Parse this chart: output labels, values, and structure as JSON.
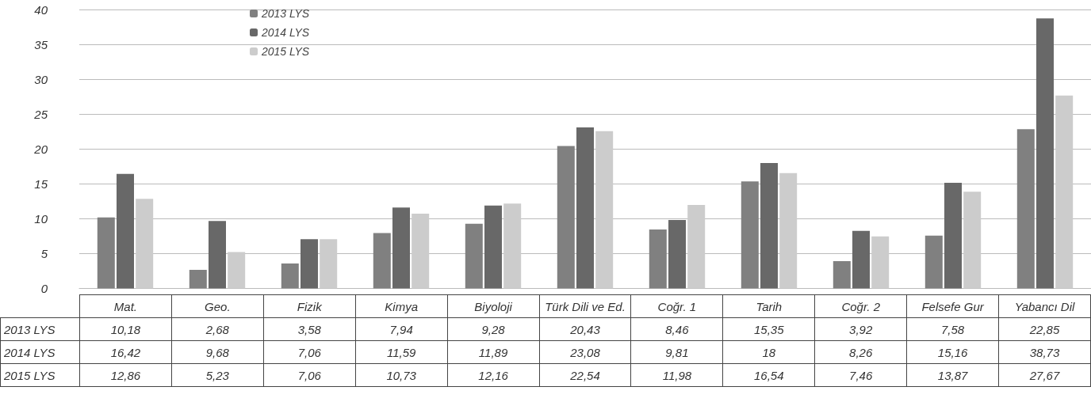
{
  "chart_data": {
    "type": "bar",
    "categories": [
      "Mat.",
      "Geo.",
      "Fizik",
      "Kimya",
      "Biyoloji",
      "Türk Dili ve Ed.",
      "Coğr. 1",
      "Tarih",
      "Coğr. 2",
      "Felsefe Gur",
      "Yabancı Dil"
    ],
    "series": [
      {
        "name": "2013 LYS",
        "color": "#808080",
        "values": [
          10.18,
          2.68,
          3.58,
          7.94,
          9.28,
          20.43,
          8.46,
          15.35,
          3.92,
          7.58,
          22.85
        ],
        "value_labels": [
          "10,18",
          "2,68",
          "3,58",
          "7,94",
          "9,28",
          "20,43",
          "8,46",
          "15,35",
          "3,92",
          "7,58",
          "22,85"
        ]
      },
      {
        "name": "2014 LYS",
        "color": "#686868",
        "values": [
          16.42,
          9.68,
          7.06,
          11.59,
          11.89,
          23.08,
          9.81,
          18,
          8.26,
          15.16,
          38.73
        ],
        "value_labels": [
          "16,42",
          "9,68",
          "7,06",
          "11,59",
          "11,89",
          "23,08",
          "9,81",
          "18",
          "8,26",
          "15,16",
          "38,73"
        ]
      },
      {
        "name": "2015 LYS",
        "color": "#cccccc",
        "values": [
          12.86,
          5.23,
          7.06,
          10.73,
          12.16,
          22.54,
          11.98,
          16.54,
          7.46,
          13.87,
          27.67
        ],
        "value_labels": [
          "12,86",
          "5,23",
          "7,06",
          "10,73",
          "12,16",
          "22,54",
          "11,98",
          "16,54",
          "7,46",
          "13,87",
          "27,67"
        ]
      }
    ],
    "ylim": [
      0,
      40
    ],
    "yticks": [
      0,
      5,
      10,
      15,
      20,
      25,
      30,
      35,
      40
    ],
    "grid": "y",
    "legend": "top left"
  }
}
